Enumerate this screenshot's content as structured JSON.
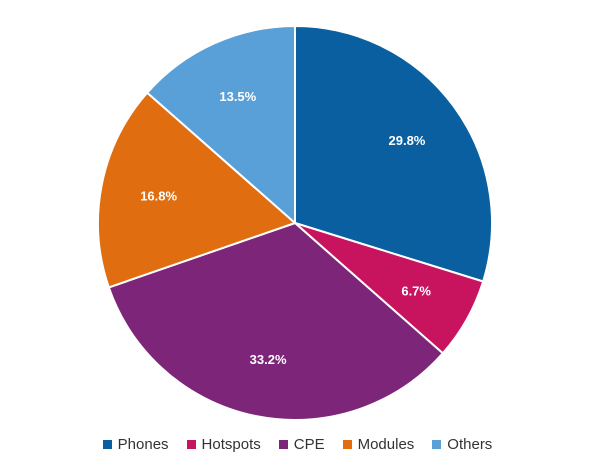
{
  "chart_data": {
    "type": "pie",
    "categories": [
      "Phones",
      "Hotspots",
      "CPE",
      "Modules",
      "Others"
    ],
    "values": [
      29.8,
      6.7,
      33.2,
      16.8,
      13.5
    ],
    "labels": [
      "29.8%",
      "6.7%",
      "33.2%",
      "16.8%",
      "13.5%"
    ],
    "colors": [
      "#0a5fa1",
      "#c8135f",
      "#7d2579",
      "#e06d10",
      "#5aa0d8"
    ],
    "start_angle_deg": 0,
    "direction": "clockwise",
    "legend_position": "bottom",
    "title": ""
  }
}
